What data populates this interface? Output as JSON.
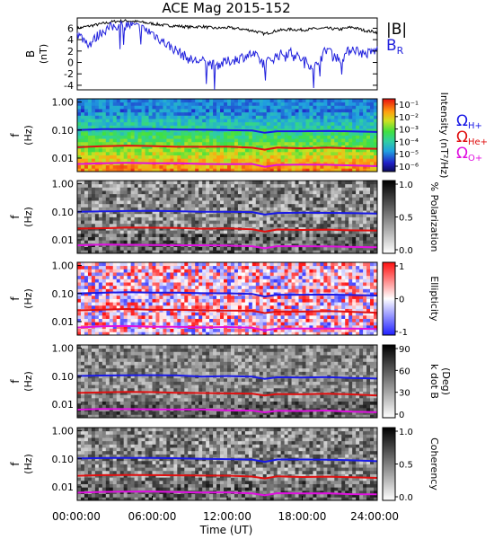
{
  "figure": {
    "title": "ACE Mag 2015-152",
    "xlabel": "Time (UT)",
    "x_ticks": [
      "00:00:00",
      "06:00:00",
      "12:00:00",
      "18:00:00",
      "24:00:00"
    ]
  },
  "colors": {
    "B_total": "#000000",
    "B_R": "#2222dd",
    "H_plus": "#1a1ae6",
    "He_plus": "#e01010",
    "O_plus": "#e010e0"
  },
  "chart_data": [
    {
      "type": "line",
      "panel": "magnetic-field",
      "ylabel": "B",
      "yunit": "(nT)",
      "y_ticks": [
        "-4",
        "-2",
        "0",
        "2",
        "4",
        "6"
      ],
      "ylim": [
        -4.8,
        7.8
      ],
      "x_hours": [
        0,
        1,
        2,
        3,
        4,
        5,
        6,
        7,
        8,
        9,
        10,
        11,
        12,
        13,
        14,
        15,
        16,
        17,
        18,
        19,
        20,
        21,
        22,
        23,
        24
      ],
      "series": [
        {
          "name": "|B|",
          "values": [
            6.0,
            6.4,
            6.8,
            7.2,
            7.3,
            7.1,
            6.8,
            6.5,
            6.4,
            6.2,
            6.3,
            6.0,
            6.1,
            5.9,
            5.6,
            5.0,
            5.6,
            5.8,
            5.7,
            5.9,
            6.0,
            5.8,
            6.2,
            5.6,
            5.3
          ]
        },
        {
          "name": "B_R",
          "values": [
            5.0,
            3.2,
            5.5,
            6.4,
            6.6,
            6.1,
            5.2,
            3.4,
            2.0,
            0.5,
            0.2,
            -0.5,
            0.1,
            0.8,
            1.5,
            -0.2,
            1.2,
            1.8,
            0.5,
            -0.8,
            2.5,
            0.4,
            2.6,
            1.4,
            2.2
          ]
        }
      ]
    },
    {
      "type": "heatmap",
      "panel": "intensity",
      "ylabel": "f",
      "yunit": "(Hz)",
      "y_ticks": [
        "0.01",
        "0.10",
        "1.00"
      ],
      "colorbar": {
        "label": "Intensity (nT²/Hz)",
        "ticks": [
          "10⁻¹",
          "10⁻²",
          "10⁻³",
          "10⁻⁴",
          "10⁻⁵",
          "10⁻⁶"
        ]
      },
      "legend": [
        "ΩH+",
        "ΩHe+",
        "ΩO+"
      ]
    },
    {
      "type": "heatmap",
      "panel": "polarization",
      "ylabel": "f",
      "yunit": "(Hz)",
      "y_ticks": [
        "0.01",
        "0.10",
        "1.00"
      ],
      "colorbar": {
        "label": "% Polarization",
        "ticks": [
          "0.0",
          "0.5",
          "1.0"
        ]
      }
    },
    {
      "type": "heatmap",
      "panel": "ellipticity",
      "ylabel": "f",
      "yunit": "(Hz)",
      "y_ticks": [
        "0.01",
        "0.10",
        "1.00"
      ],
      "colorbar": {
        "label": "Ellipticity",
        "ticks": [
          "-1",
          "0",
          "1"
        ]
      }
    },
    {
      "type": "heatmap",
      "panel": "k-dot-b",
      "ylabel": "f",
      "yunit": "(Hz)",
      "y_ticks": [
        "0.01",
        "0.10",
        "1.00"
      ],
      "colorbar": {
        "label": "k dot B",
        "unit": "(Deg)",
        "ticks": [
          "0",
          "30",
          "60",
          "90"
        ]
      }
    },
    {
      "type": "heatmap",
      "panel": "coherency",
      "ylabel": "f",
      "yunit": "(Hz)",
      "y_ticks": [
        "0.01",
        "0.10",
        "1.00"
      ],
      "colorbar": {
        "label": "Coherency",
        "ticks": [
          "0.0",
          "0.5",
          "1.0"
        ]
      }
    }
  ],
  "gyrofrequency_curves": {
    "x_hours": [
      0,
      2,
      4,
      6,
      8,
      10,
      12,
      14,
      15,
      16,
      18,
      20,
      22,
      24
    ],
    "H_plus": [
      0.1,
      0.106,
      0.109,
      0.107,
      0.104,
      0.1,
      0.1,
      0.095,
      0.08,
      0.093,
      0.092,
      0.093,
      0.088,
      0.084
    ],
    "He_plus": [
      0.025,
      0.0265,
      0.0272,
      0.0268,
      0.026,
      0.025,
      0.025,
      0.024,
      0.02,
      0.0233,
      0.023,
      0.0233,
      0.022,
      0.021
    ],
    "O_plus": [
      0.00625,
      0.0066,
      0.0068,
      0.0067,
      0.0065,
      0.00625,
      0.00625,
      0.006,
      0.005,
      0.0058,
      0.0058,
      0.0058,
      0.0055,
      0.0053
    ]
  }
}
